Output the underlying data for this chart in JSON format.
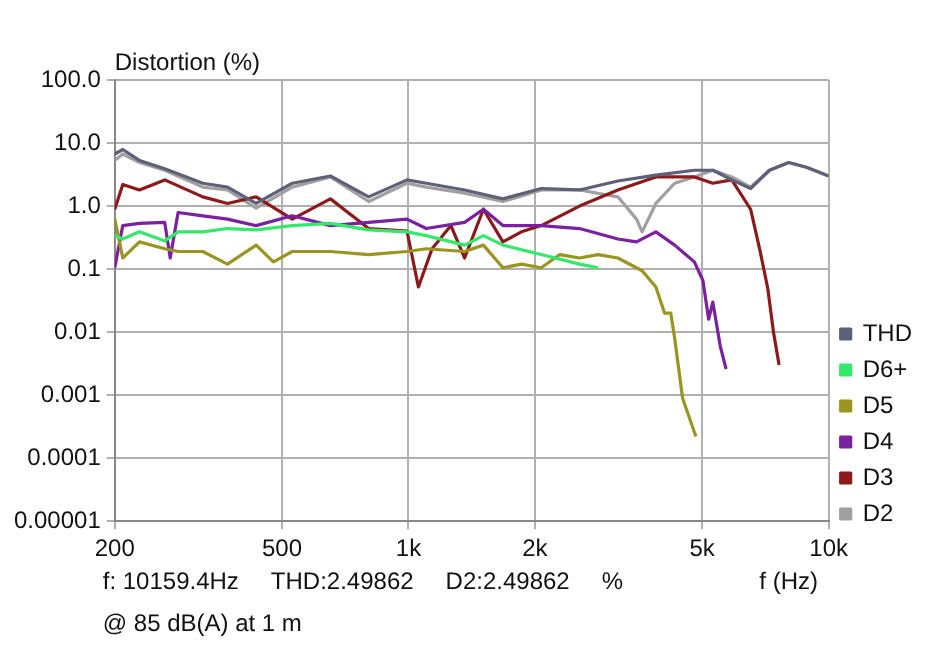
{
  "chart_data": {
    "type": "line",
    "ylabel": "Distortion (%)",
    "xlabel": "f (Hz)",
    "log": "xy",
    "grid": true,
    "legend": "right",
    "marker": "none",
    "line_style": "solid",
    "xlim": [
      200,
      10000
    ],
    "xticks": [
      200,
      500,
      {
        "value": 1000,
        "label": "1k"
      },
      {
        "value": 2000,
        "label": "2k"
      },
      {
        "value": 5000,
        "label": "5k"
      },
      {
        "value": 10000,
        "label": "10k"
      }
    ],
    "ylim": [
      1e-05,
      100
    ],
    "yticks": [
      {
        "value": 100,
        "label": "100.0"
      },
      {
        "value": 10,
        "label": "10.0"
      },
      {
        "value": 1,
        "label": "1.0"
      },
      0.1,
      0.01,
      0.001,
      0.0001,
      {
        "value": 1e-05,
        "label": "0.00001"
      }
    ],
    "annotations": [
      "f: 10159.4Hz",
      "THD:2.49862",
      "D2:2.49862",
      "%",
      "@ 85 dB(A) at 1 m"
    ],
    "series": [
      {
        "name": "THD",
        "color": "#5c6078",
        "x": [
          200,
          209,
          229,
          263,
          324,
          371,
          434,
          529,
          652,
          804,
          992,
          1102,
          1360,
          1678,
          2070,
          2553,
          3150,
          3880,
          4790,
          5300,
          5880,
          6520,
          7230,
          8030,
          8890,
          10000
        ],
        "values": [
          6.7,
          7.9,
          5.3,
          3.9,
          2.3,
          2.0,
          1.1,
          2.3,
          3.0,
          1.4,
          2.6,
          2.3,
          1.8,
          1.3,
          1.9,
          1.8,
          2.5,
          3.1,
          3.7,
          3.7,
          2.6,
          1.9,
          3.7,
          4.9,
          4.1,
          3.0
        ]
      },
      {
        "name": "D6+",
        "color": "#33e86a",
        "x": [
          200,
          209,
          229,
          263,
          283,
          324,
          371,
          434,
          529,
          652,
          804,
          992,
          1102,
          1360,
          1508,
          1678,
          2070,
          2553,
          2826
        ],
        "values": [
          0.34,
          0.3,
          0.39,
          0.28,
          0.39,
          0.39,
          0.44,
          0.42,
          0.49,
          0.53,
          0.42,
          0.39,
          0.34,
          0.24,
          0.34,
          0.24,
          0.17,
          0.12,
          0.105
        ]
      },
      {
        "name": "D5",
        "color": "#9a9420",
        "x": [
          200,
          209,
          229,
          263,
          283,
          324,
          371,
          434,
          477,
          529,
          652,
          804,
          992,
          1102,
          1360,
          1508,
          1678,
          1857,
          2070,
          2292,
          2553,
          2826,
          3150,
          3598,
          3880,
          4070,
          4210,
          4300,
          4490,
          4830
        ],
        "values": [
          0.62,
          0.15,
          0.27,
          0.21,
          0.19,
          0.19,
          0.12,
          0.24,
          0.13,
          0.19,
          0.19,
          0.17,
          0.19,
          0.21,
          0.19,
          0.24,
          0.105,
          0.12,
          0.105,
          0.17,
          0.15,
          0.17,
          0.15,
          0.094,
          0.052,
          0.02,
          0.02,
          0.008,
          0.0009,
          0.00022
        ]
      },
      {
        "name": "D4",
        "color": "#7a20a0",
        "x": [
          200,
          209,
          229,
          263,
          271,
          283,
          324,
          371,
          434,
          529,
          652,
          804,
          992,
          1102,
          1360,
          1508,
          1678,
          2070,
          2553,
          3150,
          3488,
          3880,
          4300,
          4790,
          5020,
          5180,
          5300,
          5520,
          5700
        ],
        "values": [
          0.105,
          0.49,
          0.53,
          0.55,
          0.15,
          0.79,
          0.7,
          0.62,
          0.49,
          0.7,
          0.49,
          0.55,
          0.62,
          0.44,
          0.55,
          0.89,
          0.49,
          0.49,
          0.44,
          0.3,
          0.27,
          0.39,
          0.24,
          0.13,
          0.066,
          0.016,
          0.03,
          0.006,
          0.0026
        ]
      },
      {
        "name": "D3",
        "color": "#8c1a1a",
        "x": [
          200,
          209,
          229,
          263,
          324,
          371,
          434,
          529,
          652,
          804,
          992,
          1056,
          1138,
          1262,
          1360,
          1508,
          1678,
          1857,
          2070,
          2553,
          3150,
          3880,
          4790,
          5300,
          5880,
          6520,
          6860,
          7160,
          7390,
          7620
        ],
        "values": [
          0.89,
          2.2,
          1.8,
          2.6,
          1.4,
          1.1,
          1.4,
          0.62,
          1.3,
          0.44,
          0.4,
          0.052,
          0.21,
          0.49,
          0.15,
          0.89,
          0.27,
          0.39,
          0.49,
          1.0,
          1.8,
          2.9,
          2.9,
          2.3,
          2.6,
          0.89,
          0.2,
          0.05,
          0.01,
          0.003
        ]
      },
      {
        "name": "D2",
        "color": "#a0a0a0",
        "x": [
          200,
          209,
          229,
          263,
          324,
          371,
          434,
          529,
          652,
          804,
          992,
          1102,
          1360,
          1678,
          2070,
          2553,
          3150,
          3488,
          3598,
          3880,
          4300,
          4790,
          5300,
          5880,
          6520,
          7230,
          8030,
          8890,
          10000
        ],
        "values": [
          5.3,
          6.7,
          4.9,
          3.7,
          2.0,
          1.8,
          0.93,
          2.0,
          2.9,
          1.18,
          2.3,
          2.0,
          1.6,
          1.18,
          1.8,
          1.8,
          1.4,
          0.62,
          0.39,
          1.1,
          2.3,
          2.9,
          3.7,
          2.9,
          2.0,
          3.7,
          4.9,
          4.1,
          3.0
        ]
      }
    ]
  }
}
